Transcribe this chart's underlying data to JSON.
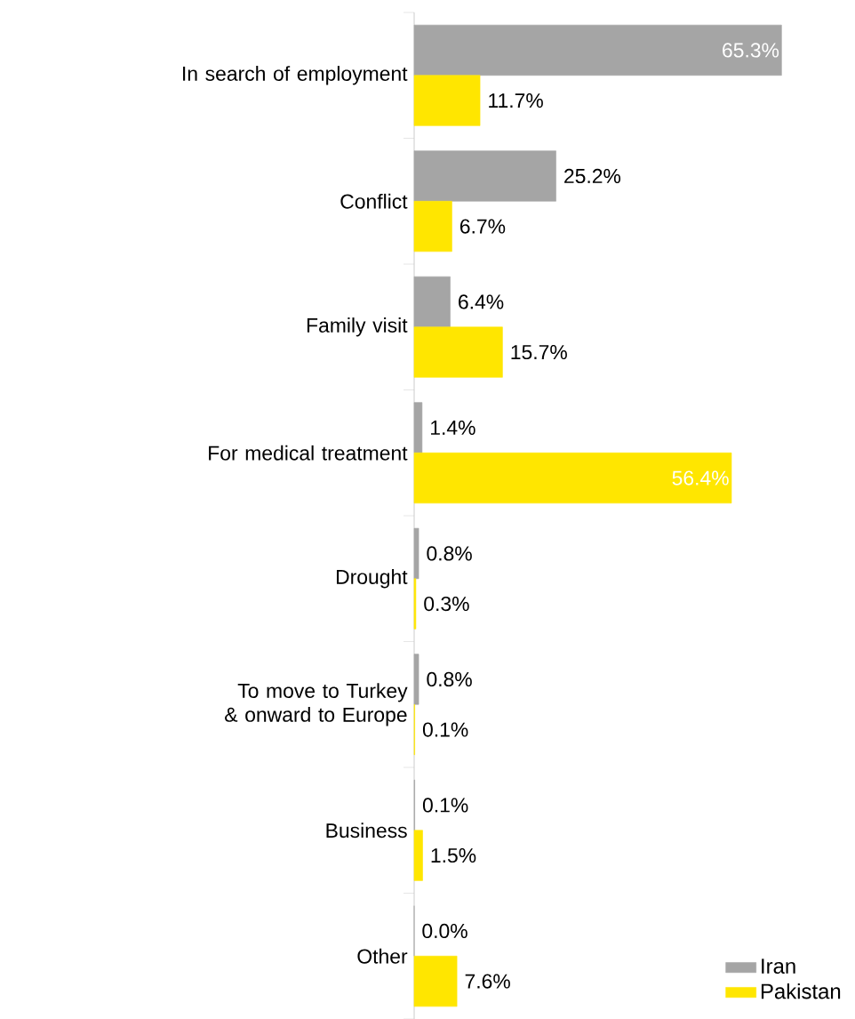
{
  "chart_data": {
    "type": "bar",
    "orientation": "horizontal",
    "categories": [
      "In search of employment",
      "Conflict",
      "Family visit",
      "For medical treatment",
      "Drought",
      "To move to Turkey & onward to Europe",
      "Business",
      "Other"
    ],
    "series": [
      {
        "name": "Iran",
        "color": "#a5a5a5",
        "values": [
          65.3,
          25.2,
          6.4,
          1.4,
          0.8,
          0.8,
          0.1,
          0.0
        ],
        "value_labels": [
          "65.3%",
          "25.2%",
          "6.4%",
          "1.4%",
          "0.8%",
          "0.8%",
          "0.1%",
          "0.0%"
        ]
      },
      {
        "name": "Pakistan",
        "color": "#ffe600",
        "values": [
          11.7,
          6.7,
          15.7,
          56.4,
          0.3,
          0.1,
          1.5,
          7.6
        ],
        "value_labels": [
          "11.7%",
          "6.7%",
          "15.7%",
          "56.4%",
          "0.3%",
          "0.1%",
          "1.5%",
          "7.6%"
        ]
      }
    ],
    "legend": "bottom right"
  }
}
